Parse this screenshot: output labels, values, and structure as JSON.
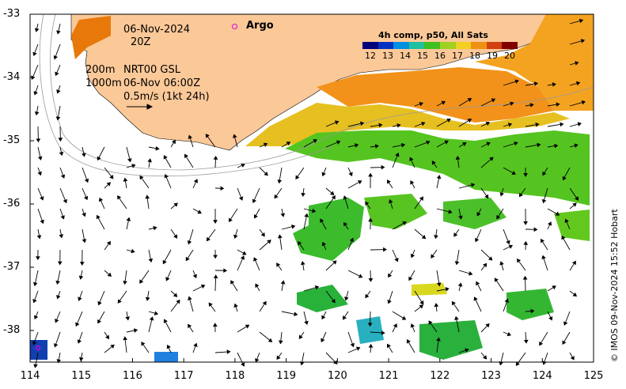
{
  "map": {
    "date": "06-Nov-2024",
    "time": "20Z",
    "contour_200m": "200m",
    "contour_1000m": "1000m",
    "product": "NRT00 GSL",
    "valid_time": "06-Nov 06:00Z",
    "velocity_scale": "0.5m/s (1kt 24h)",
    "argo_label": "Argo",
    "colorbar_title": "4h comp, p50, All Sats",
    "colorbar_ticks": [
      "12",
      "13",
      "14",
      "15",
      "16",
      "17",
      "18",
      "19",
      "20"
    ],
    "credit": "© IMOS 09-Nov-2024 15:52 Hobart",
    "lat_ticks": [
      "-33",
      "-34",
      "-35",
      "-36",
      "-37",
      "-38"
    ],
    "lon_ticks": [
      "114",
      "115",
      "116",
      "117",
      "118",
      "119",
      "120",
      "121",
      "122",
      "123",
      "124",
      "125"
    ],
    "extent": {
      "lon": [
        114,
        125
      ],
      "lat": [
        -38.5,
        -33
      ]
    },
    "colors": {
      "land": "#fbc898",
      "coast_outline": "#000000",
      "contour": "#9a9a9a",
      "argo": "#e000e0"
    }
  }
}
